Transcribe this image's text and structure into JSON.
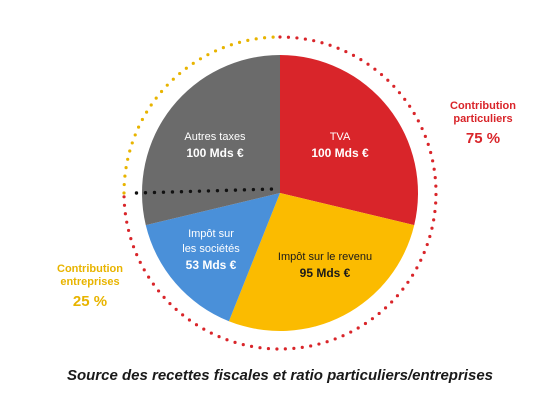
{
  "chart_data": {
    "type": "pie",
    "title": "Source des recettes fiscales et ratio particuliers/entreprises",
    "slices": [
      {
        "key": "tva",
        "label": "TVA",
        "value_text": "100 Mds €",
        "value": 100,
        "color": "#d9252a"
      },
      {
        "key": "ir",
        "label": "Impôt sur le revenu",
        "value_text": "95 Mds €",
        "value": 95,
        "color": "#fbbb00"
      },
      {
        "key": "is",
        "label": "Impôt sur les sociétés",
        "value_text": "53 Mds €",
        "value": 53,
        "color": "#4a90d9"
      },
      {
        "key": "autres",
        "label": "Autres taxes",
        "value_text": "100 Mds €",
        "value": 100,
        "color": "#6b6b6b"
      }
    ],
    "groups": [
      {
        "key": "particuliers",
        "label": "Contribution particuliers",
        "percent_text": "75 %",
        "percent": 75,
        "color": "#d9252a"
      },
      {
        "key": "entreprises",
        "label": "Contribution entreprises",
        "percent_text": "25 %",
        "percent": 25,
        "color": "#e8b400"
      }
    ]
  },
  "labels": {
    "tva_name": "TVA",
    "tva_value": "100 Mds €",
    "ir_name": "Impôt sur le revenu",
    "ir_value": "95 Mds €",
    "is_name_1": "Impôt sur",
    "is_name_2": "les sociétés",
    "is_value": "53 Mds €",
    "autres_name": "Autres taxes",
    "autres_value": "100 Mds €",
    "particuliers_name_1": "Contribution",
    "particuliers_name_2": "particuliers",
    "particuliers_pct": "75 %",
    "entreprises_name_1": "Contribution",
    "entreprises_name_2": "entreprises",
    "entreprises_pct": "25 %"
  }
}
